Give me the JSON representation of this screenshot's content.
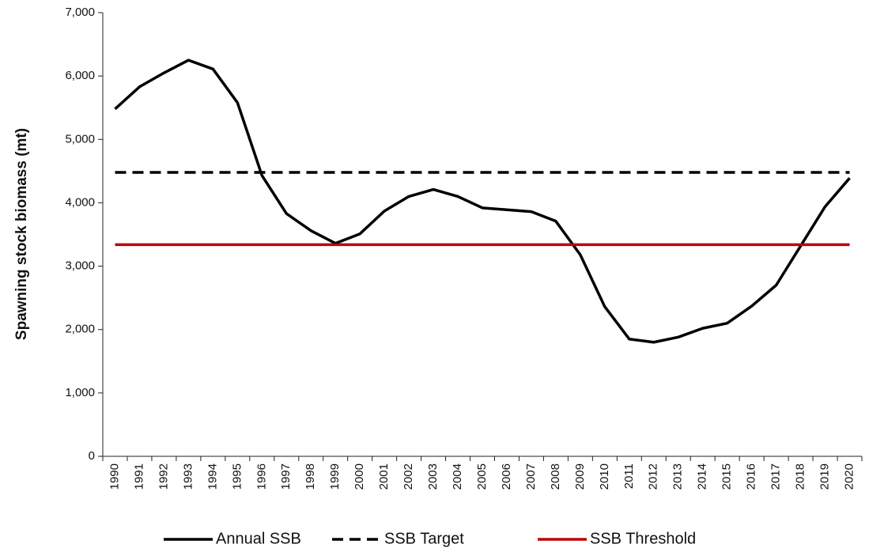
{
  "chart_data": {
    "type": "line",
    "y_label": "Spawning stock biomass (mt)",
    "categories": [
      "1990",
      "1991",
      "1992",
      "1993",
      "1994",
      "1995",
      "1996",
      "1997",
      "1998",
      "1999",
      "2000",
      "2001",
      "2002",
      "2003",
      "2004",
      "2005",
      "2006",
      "2007",
      "2008",
      "2009",
      "2010",
      "2011",
      "2012",
      "2013",
      "2014",
      "2015",
      "2016",
      "2017",
      "2018",
      "2019",
      "2020"
    ],
    "series": [
      {
        "name": "Annual SSB",
        "color": "#000000",
        "dash": false,
        "values": [
          5480,
          5830,
          6050,
          6250,
          6110,
          5580,
          4430,
          3830,
          3560,
          3360,
          3510,
          3870,
          4100,
          4210,
          4100,
          3920,
          3890,
          3860,
          3710,
          3180,
          2360,
          1850,
          1800,
          1880,
          2020,
          2100,
          2370,
          2700,
          3320,
          3940,
          4390
        ]
      },
      {
        "name": "SSB Target",
        "color": "#000000",
        "dash": true,
        "values": [
          4480,
          4480,
          4480,
          4480,
          4480,
          4480,
          4480,
          4480,
          4480,
          4480,
          4480,
          4480,
          4480,
          4480,
          4480,
          4480,
          4480,
          4480,
          4480,
          4480,
          4480,
          4480,
          4480,
          4480,
          4480,
          4480,
          4480,
          4480,
          4480,
          4480,
          4480
        ]
      },
      {
        "name": "SSB Threshold",
        "color": "#c00000",
        "dash": false,
        "values": [
          3340,
          3340,
          3340,
          3340,
          3340,
          3340,
          3340,
          3340,
          3340,
          3340,
          3340,
          3340,
          3340,
          3340,
          3340,
          3340,
          3340,
          3340,
          3340,
          3340,
          3340,
          3340,
          3340,
          3340,
          3340,
          3340,
          3340,
          3340,
          3340,
          3340,
          3340
        ]
      }
    ],
    "ylim": [
      0,
      7000
    ],
    "yticks": [
      0,
      {
        "value": 1000,
        "label": "1,000"
      },
      {
        "value": 2000,
        "label": "2,000"
      },
      {
        "value": 3000,
        "label": "3,000"
      },
      {
        "value": 4000,
        "label": "4,000"
      },
      {
        "value": 5000,
        "label": "5,000"
      },
      {
        "value": 6000,
        "label": "6,000"
      },
      {
        "value": 7000,
        "label": "7,000"
      }
    ],
    "grid": false,
    "legend": "bottom"
  }
}
